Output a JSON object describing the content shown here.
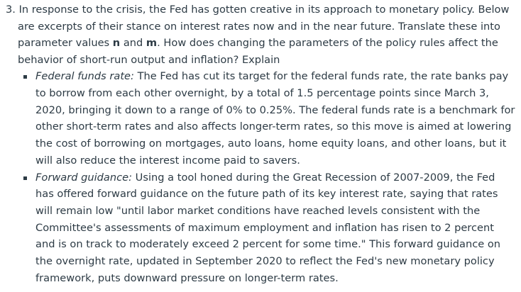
{
  "question": {
    "intro": "3. In response to the crisis, the Fed has gotten creative in its approach to monetary policy. Below are excerpts of their stance on interest rates now and in the near future. Translate these into parameter values ",
    "param_n": "n",
    "and_word": " and ",
    "param_m": "m",
    "outro": ". How does changing the parameters of the policy rules affect the behavior of short-run output and inflation? Explain"
  },
  "bullets": [
    {
      "term": "Federal funds rate:",
      "text": " The Fed has cut its target for the federal funds rate, the rate banks pay to borrow from each other overnight, by a total of 1.5 percentage points since March 3, 2020, bringing it down to a range of 0% to 0.25%. The federal funds rate is a benchmark for other short-term rates and also affects longer-term rates, so this move is aimed at lowering the cost of borrowing on mortgages, auto loans, home equity loans, and other loans, but it will also reduce the interest income paid to savers."
    },
    {
      "term": "Forward guidance:",
      "text": " Using a tool honed during the Great Recession of 2007-2009, the Fed has offered forward guidance on the future path of its key interest rate, saying that rates will remain low \"until labor market conditions have reached levels consistent with the Committee's assessments of maximum employment and inflation has risen to 2 percent and is on track to moderately exceed 2 percent for some time.\" This forward guidance on the overnight rate, updated in September 2020 to reflect the Fed's new monetary policy framework, puts downward pressure on longer-term rates."
    }
  ]
}
